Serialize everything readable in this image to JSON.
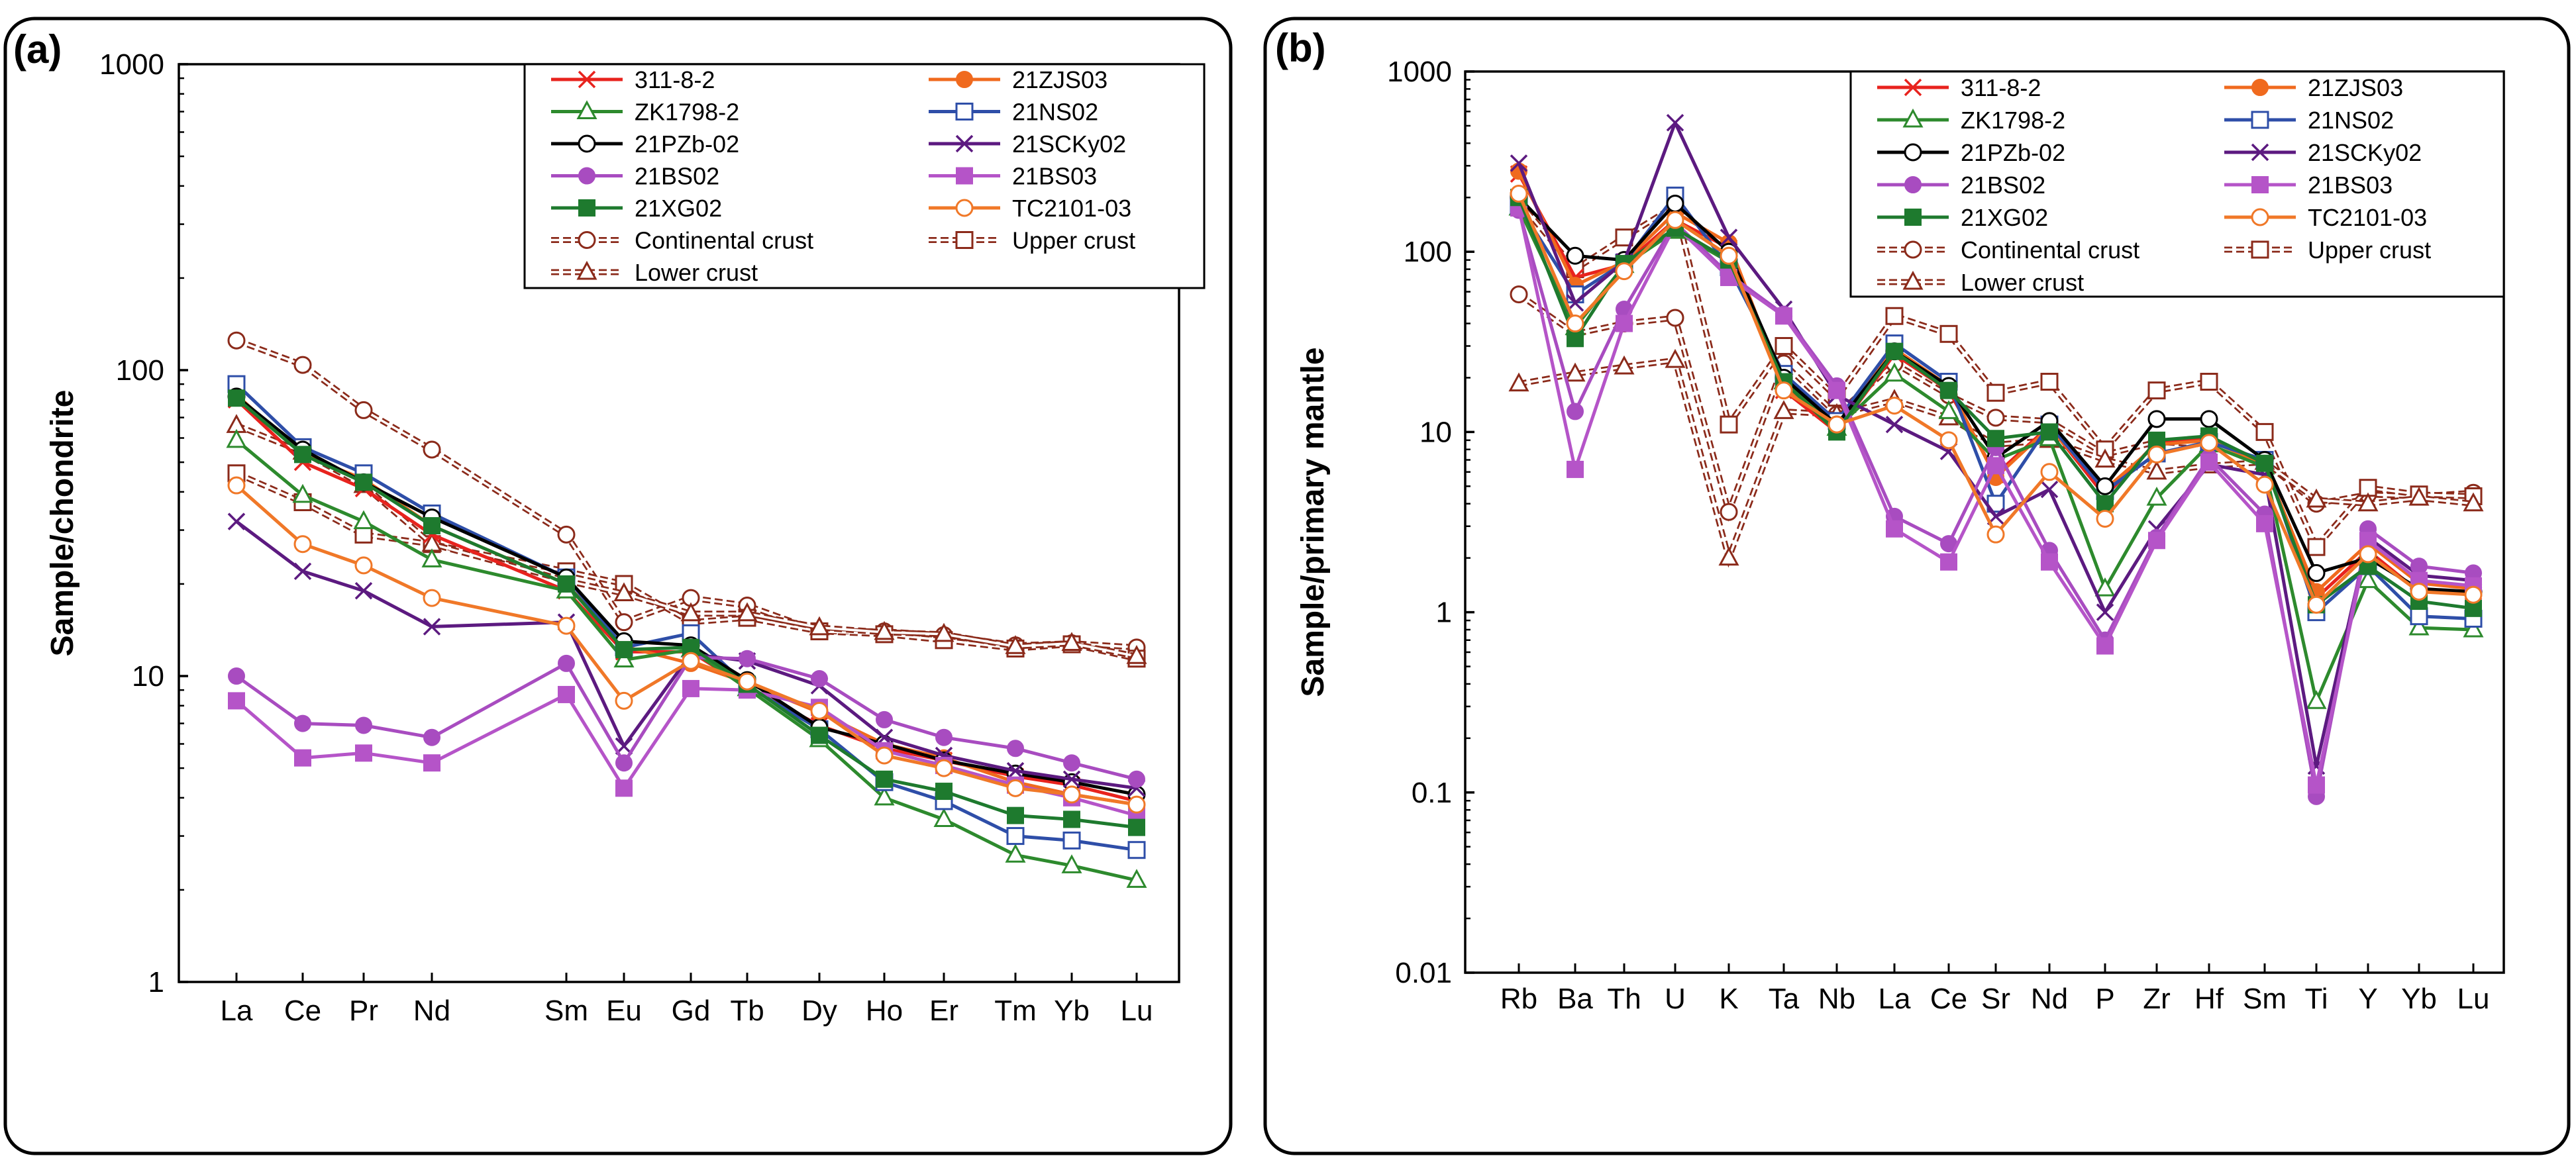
{
  "chart_data": [
    {
      "panel_label": "(a)",
      "type": "line",
      "ylabel": "Sample/chondrite",
      "xlabel": "",
      "yscale": "log",
      "ylim": [
        1,
        1000
      ],
      "y_ticks": [
        "1",
        "10",
        "100",
        "1000"
      ],
      "categories": [
        "La",
        "Ce",
        "Pr",
        "Nd",
        "Sm",
        "Eu",
        "Gd",
        "Tb",
        "Dy",
        "Ho",
        "Er",
        "Tm",
        "Yb",
        "Lu"
      ],
      "legend_location": "top-right",
      "series": [
        {
          "name": "311-8-2",
          "color": "#e8231e",
          "marker": "x",
          "values": [
            80,
            50,
            41,
            29,
            19,
            12,
            12,
            9.2,
            6.9,
            5.8,
            5.3,
            4.7,
            4.4,
            3.9
          ]
        },
        {
          "name": "21ZJS03",
          "color": "#f06a1e",
          "marker": "filled-circle",
          "values": [
            83,
            53,
            44,
            31,
            20,
            12.5,
            11,
            9.5,
            7.6,
            6.0,
            5.4,
            4.5,
            4.1,
            3.8
          ]
        },
        {
          "name": "ZK1798-2",
          "color": "#2d8a2d",
          "marker": "open-triangle",
          "values": [
            59,
            39,
            32,
            24,
            19,
            11.3,
            12.2,
            9.1,
            6.2,
            4.0,
            3.4,
            2.6,
            2.4,
            2.15
          ]
        },
        {
          "name": "21NS02",
          "color": "#2e4ea8",
          "marker": "open-square",
          "values": [
            90,
            56,
            46,
            34,
            21,
            12.4,
            13.8,
            9.3,
            6.7,
            4.5,
            3.9,
            3.0,
            2.9,
            2.7
          ]
        },
        {
          "name": "21PZb-02",
          "color": "#000000",
          "marker": "open-circle",
          "values": [
            82,
            55,
            43,
            33,
            21,
            13,
            12.6,
            9.7,
            6.8,
            6.0,
            5.3,
            4.8,
            4.5,
            4.1
          ]
        },
        {
          "name": "21SCKy02",
          "color": "#5c1a80",
          "marker": "x",
          "values": [
            32,
            22,
            19,
            14.5,
            15,
            5.9,
            11.8,
            11.2,
            9.3,
            6.3,
            5.5,
            4.9,
            4.6,
            4.3
          ]
        },
        {
          "name": "21BS02",
          "color": "#a84cc0",
          "marker": "filled-circle",
          "values": [
            10,
            7.0,
            6.9,
            6.3,
            11,
            5.2,
            11.5,
            11.4,
            9.8,
            7.2,
            6.3,
            5.8,
            5.2,
            4.6
          ]
        },
        {
          "name": "21BS03",
          "color": "#b554c8",
          "marker": "filled-square",
          "values": [
            8.3,
            5.4,
            5.6,
            5.2,
            8.7,
            4.3,
            9.1,
            9.0,
            7.9,
            5.7,
            5.1,
            4.4,
            4.0,
            3.5
          ]
        },
        {
          "name": "21XG02",
          "color": "#1e7a2e",
          "marker": "filled-square",
          "values": [
            81,
            53,
            43,
            31,
            20,
            12.2,
            12.4,
            9.4,
            6.4,
            4.6,
            4.2,
            3.5,
            3.4,
            3.2
          ]
        },
        {
          "name": "TC2101-03",
          "color": "#f07828",
          "marker": "open-circle",
          "values": [
            42,
            27,
            23,
            18,
            14.6,
            8.3,
            11.2,
            9.6,
            7.7,
            5.5,
            5.0,
            4.3,
            4.1,
            3.8
          ]
        },
        {
          "name": "Continental crust",
          "color": "#8b2a1a",
          "marker": "open-circle",
          "dashed": true,
          "values": [
            125,
            104,
            74,
            55,
            29,
            15,
            18,
            17,
            14,
            14,
            13.6,
            12.6,
            12.8,
            12.4
          ]
        },
        {
          "name": "Upper crust",
          "color": "#8b2a1a",
          "marker": "open-square",
          "dashed": true,
          "values": [
            46,
            37,
            29,
            27,
            22,
            20,
            15,
            15.5,
            14,
            13.7,
            13.1,
            12.3,
            12.7,
            11.4
          ]
        },
        {
          "name": "Lower crust",
          "color": "#8b2a1a",
          "marker": "open-triangle",
          "dashed": true,
          "values": [
            66,
            54,
            42,
            27,
            20.5,
            18.6,
            16,
            16,
            14.4,
            13.9,
            13.7,
            12.5,
            12.8,
            11.6
          ]
        }
      ]
    },
    {
      "panel_label": "(b)",
      "type": "line",
      "ylabel": "Sample/primary mantle",
      "xlabel": "",
      "yscale": "log",
      "ylim": [
        0.01,
        1000
      ],
      "y_ticks": [
        "0.01",
        "0.1",
        "1",
        "10",
        "100",
        "1000"
      ],
      "categories": [
        "Rb",
        "Ba",
        "Th",
        "U",
        "K",
        "Ta",
        "Nb",
        "La",
        "Ce",
        "Sr",
        "Nd",
        "P",
        "Zr",
        "Hf",
        "Sm",
        "Ti",
        "Y",
        "Yb",
        "Lu"
      ],
      "legend_location": "top-right",
      "series": [
        {
          "name": "311-8-2",
          "color": "#e8231e",
          "marker": "x",
          "values": [
            270,
            72,
            85,
            150,
            105,
            17,
            10,
            27,
            17,
            5.8,
            10.8,
            4.4,
            8.8,
            9.3,
            6.8,
            1.2,
            2.2,
            1.3,
            1.3
          ]
        },
        {
          "name": "21ZJS03",
          "color": "#f06a1e",
          "marker": "filled-circle",
          "values": [
            280,
            65,
            88,
            165,
            112,
            18,
            11,
            29,
            18,
            5.6,
            10.6,
            4.8,
            8.5,
            9.0,
            6.6,
            1.3,
            2.4,
            1.45,
            1.35
          ]
        },
        {
          "name": "ZK1798-2",
          "color": "#2d8a2d",
          "marker": "open-triangle",
          "values": [
            175,
            38,
            84,
            130,
            88,
            19,
            10.5,
            21,
            13,
            7.0,
            9.2,
            1.35,
            4.3,
            8.5,
            6.4,
            0.32,
            1.5,
            0.82,
            0.8
          ]
        },
        {
          "name": "21NS02",
          "color": "#2e4ea8",
          "marker": "open-square",
          "values": [
            180,
            58,
            87,
            205,
            82,
            21,
            11.5,
            31,
            19,
            4.0,
            11.0,
            4.7,
            7.6,
            8.8,
            7.0,
            1.0,
            1.8,
            0.95,
            0.92
          ]
        },
        {
          "name": "21PZb-02",
          "color": "#000000",
          "marker": "open-circle",
          "values": [
            200,
            95,
            90,
            185,
            100,
            20,
            11,
            28,
            18,
            7.2,
            11.5,
            5.0,
            11.8,
            11.8,
            7.0,
            1.65,
            2.0,
            1.35,
            1.3
          ]
        },
        {
          "name": "21SCKy02",
          "color": "#5c1a80",
          "marker": "x",
          "values": [
            310,
            52,
            88,
            520,
            120,
            48,
            16,
            11,
            7.8,
            3.4,
            4.8,
            1.0,
            2.9,
            6.6,
            5.8,
            0.14,
            2.6,
            1.6,
            1.5
          ]
        },
        {
          "name": "21BS02",
          "color": "#a84cc0",
          "marker": "filled-circle",
          "values": [
            170,
            13,
            48,
            145,
            75,
            45,
            18,
            3.4,
            2.4,
            8.2,
            2.2,
            0.7,
            2.6,
            7.2,
            3.5,
            0.095,
            2.9,
            1.8,
            1.65
          ]
        },
        {
          "name": "21BS03",
          "color": "#b554c8",
          "marker": "filled-square",
          "values": [
            175,
            6.2,
            40,
            140,
            72,
            44,
            17,
            2.9,
            1.9,
            6.5,
            1.9,
            0.65,
            2.5,
            6.8,
            3.1,
            0.11,
            2.5,
            1.5,
            1.4
          ]
        },
        {
          "name": "21XG02",
          "color": "#1e7a2e",
          "marker": "filled-square",
          "values": [
            200,
            33,
            86,
            135,
            90,
            19,
            10,
            28,
            17,
            9.2,
            10,
            4.0,
            9.0,
            9.5,
            6.7,
            1.1,
            1.8,
            1.15,
            1.05
          ]
        },
        {
          "name": "TC2101-03",
          "color": "#f07828",
          "marker": "open-circle",
          "values": [
            210,
            40,
            78,
            150,
            95,
            17,
            11,
            14,
            9.0,
            2.7,
            6.0,
            3.3,
            7.5,
            8.7,
            5.1,
            1.1,
            2.1,
            1.3,
            1.25
          ]
        },
        {
          "name": "Continental crust",
          "color": "#8b2a1a",
          "marker": "open-circle",
          "dashed": true,
          "values": [
            58,
            35,
            40,
            43,
            3.6,
            24,
            12.5,
            24,
            16,
            12,
            11.5,
            7.5,
            8.8,
            8.5,
            6.8,
            4.0,
            4.5,
            4.4,
            4.6
          ]
        },
        {
          "name": "Upper crust",
          "color": "#8b2a1a",
          "marker": "open-square",
          "dashed": true,
          "values": [
            190,
            80,
            120,
            180,
            11,
            30,
            15.5,
            44,
            35,
            16.5,
            19,
            8.0,
            17,
            19,
            10,
            2.3,
            4.9,
            4.5,
            4.4
          ]
        },
        {
          "name": "Lower crust",
          "color": "#8b2a1a",
          "marker": "open-triangle",
          "dashed": true,
          "values": [
            18.5,
            21,
            23,
            25,
            2.0,
            13,
            12.5,
            15,
            12,
            8.5,
            9.0,
            7.0,
            6.0,
            6.5,
            6.8,
            4.2,
            4.0,
            4.3,
            4.0
          ]
        }
      ]
    }
  ]
}
